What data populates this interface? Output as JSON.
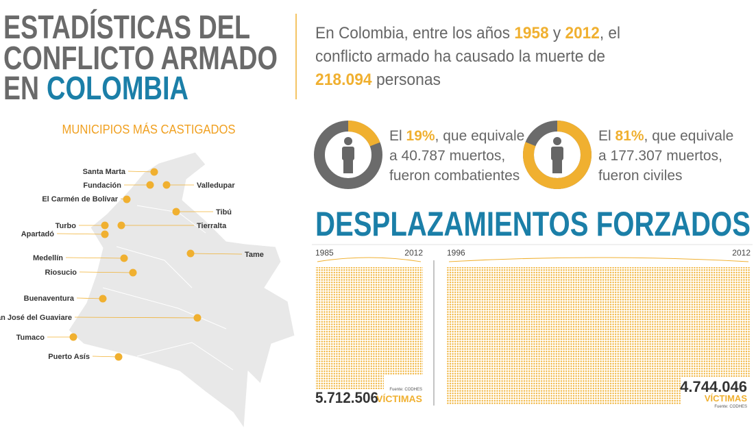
{
  "title": {
    "line1": "ESTADÍSTICAS DEL",
    "line2": "CONFLICTO ARMADO",
    "line3_prefix": "EN",
    "line3_highlight": "COLOMBIA"
  },
  "intro": {
    "lines": [
      [
        {
          "text": "En Colombia, entre los años ",
          "highlight": false
        },
        {
          "text": "1958",
          "highlight": true
        },
        {
          "text": " y ",
          "highlight": false
        },
        {
          "text": "2012",
          "highlight": true
        },
        {
          "text": ", el",
          "highlight": false
        }
      ],
      [
        {
          "text": "conflicto armado ha causado la muerte de",
          "highlight": false
        }
      ],
      [
        {
          "text": "218.094",
          "highlight": true
        },
        {
          "text": " personas",
          "highlight": false
        }
      ]
    ]
  },
  "map": {
    "heading": "MUNICIPIOS MÁS CASTIGADOS",
    "municipalities": [
      "Santa Marta",
      "Fundación",
      "Valledupar",
      "El Carmén de Bolívar",
      "Tibú",
      "Turbo",
      "Tierralta",
      "Apartadó",
      "Medellín",
      "Tame",
      "Riosucio",
      "Buenaventura",
      "San José del Guaviare",
      "Tumaco",
      "Puerto Asís"
    ]
  },
  "stats": [
    {
      "percent": 19,
      "percent_label": "19%",
      "prefix": "El ",
      "suffix": ", que equivale",
      "line2": "a 40.787 muertos,",
      "line3": "fueron combatientes"
    },
    {
      "percent": 81,
      "percent_label": "81%",
      "prefix": "El ",
      "suffix": ", que equivale",
      "line2": "a 177.307 muertos,",
      "line3": "fueron civiles"
    }
  ],
  "displacement": {
    "title": "DESPLAZAMIENTOS FORZADOS",
    "panels": [
      {
        "start": "1985",
        "end": "2012",
        "total": "5.712.506",
        "unit": "VÍCTIMAS",
        "source": "Fuente: CODHES"
      },
      {
        "start": "1996",
        "end": "2012",
        "total": "4.744.046",
        "unit": "VÍCTIMAS",
        "source": "Fuente: CODHES"
      }
    ]
  }
}
